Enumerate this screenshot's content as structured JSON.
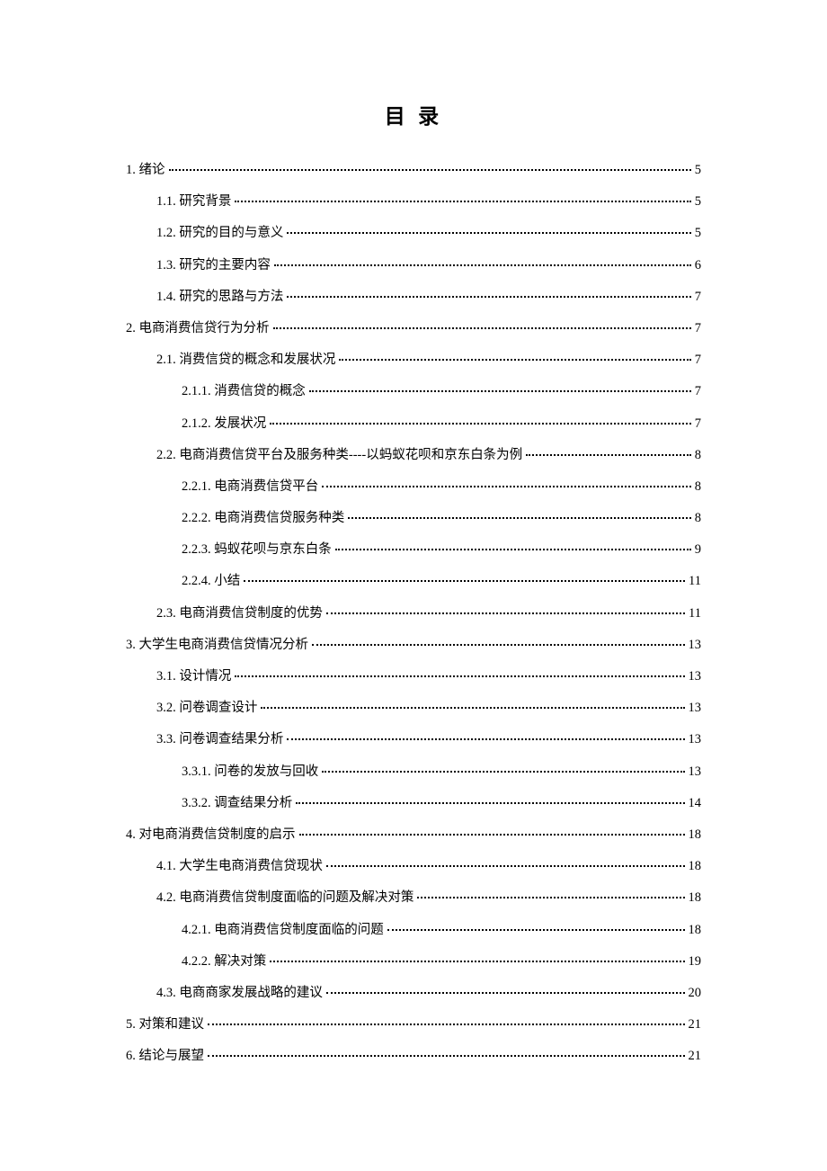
{
  "title": "目 录",
  "title_fontsize": 23,
  "entry_fontsize": 14.5,
  "entry_spacing": 35.2,
  "colors": {
    "text": "#000000",
    "background": "#ffffff"
  },
  "entries": [
    {
      "level": 1,
      "label": "1.  绪论",
      "page": "5"
    },
    {
      "level": 2,
      "label": "1.1.  研究背景",
      "page": "5"
    },
    {
      "level": 2,
      "label": "1.2.  研究的目的与意义",
      "page": "5"
    },
    {
      "level": 2,
      "label": "1.3.  研究的主要内容",
      "page": "6"
    },
    {
      "level": 2,
      "label": "1.4.  研究的思路与方法",
      "page": "7"
    },
    {
      "level": 1,
      "label": "2.  电商消费信贷行为分析",
      "page": "7"
    },
    {
      "level": 2,
      "label": "2.1.  消费信贷的概念和发展状况",
      "page": "7"
    },
    {
      "level": 3,
      "label": "2.1.1.  消费信贷的概念",
      "page": "7"
    },
    {
      "level": 3,
      "label": "2.1.2.  发展状况",
      "page": "7"
    },
    {
      "level": 2,
      "label": "2.2.  电商消费信贷平台及服务种类----以蚂蚁花呗和京东白条为例",
      "page": "8"
    },
    {
      "level": 3,
      "label": "2.2.1.  电商消费信贷平台",
      "page": "8"
    },
    {
      "level": 3,
      "label": "2.2.2.  电商消费信贷服务种类",
      "page": "8"
    },
    {
      "level": 3,
      "label": "2.2.3.  蚂蚁花呗与京东白条",
      "page": "9"
    },
    {
      "level": 3,
      "label": "2.2.4.  小结",
      "page": "11"
    },
    {
      "level": 2,
      "label": "2.3.  电商消费信贷制度的优势",
      "page": "11"
    },
    {
      "level": 1,
      "label": "3.  大学生电商消费信贷情况分析",
      "page": "13"
    },
    {
      "level": 2,
      "label": "3.1.  设计情况",
      "page": "13"
    },
    {
      "level": 2,
      "label": "3.2.  问卷调查设计",
      "page": "13"
    },
    {
      "level": 2,
      "label": "3.3.  问卷调查结果分析",
      "page": "13"
    },
    {
      "level": 3,
      "label": "3.3.1.  问卷的发放与回收",
      "page": "13"
    },
    {
      "level": 3,
      "label": "3.3.2.  调查结果分析",
      "page": "14"
    },
    {
      "level": 1,
      "label": "4.  对电商消费信贷制度的启示",
      "page": "18"
    },
    {
      "level": 2,
      "label": "4.1.  大学生电商消费信贷现状",
      "page": "18"
    },
    {
      "level": 2,
      "label": "4.2.  电商消费信贷制度面临的问题及解决对策",
      "page": "18"
    },
    {
      "level": 3,
      "label": "4.2.1.  电商消费信贷制度面临的问题",
      "page": "18"
    },
    {
      "level": 3,
      "label": "4.2.2.  解决对策",
      "page": "19"
    },
    {
      "level": 2,
      "label": "4.3.  电商商家发展战略的建议",
      "page": "20"
    },
    {
      "level": 1,
      "label": "5.  对策和建议",
      "page": "21"
    },
    {
      "level": 1,
      "label": "6.  结论与展望",
      "page": "21"
    }
  ]
}
